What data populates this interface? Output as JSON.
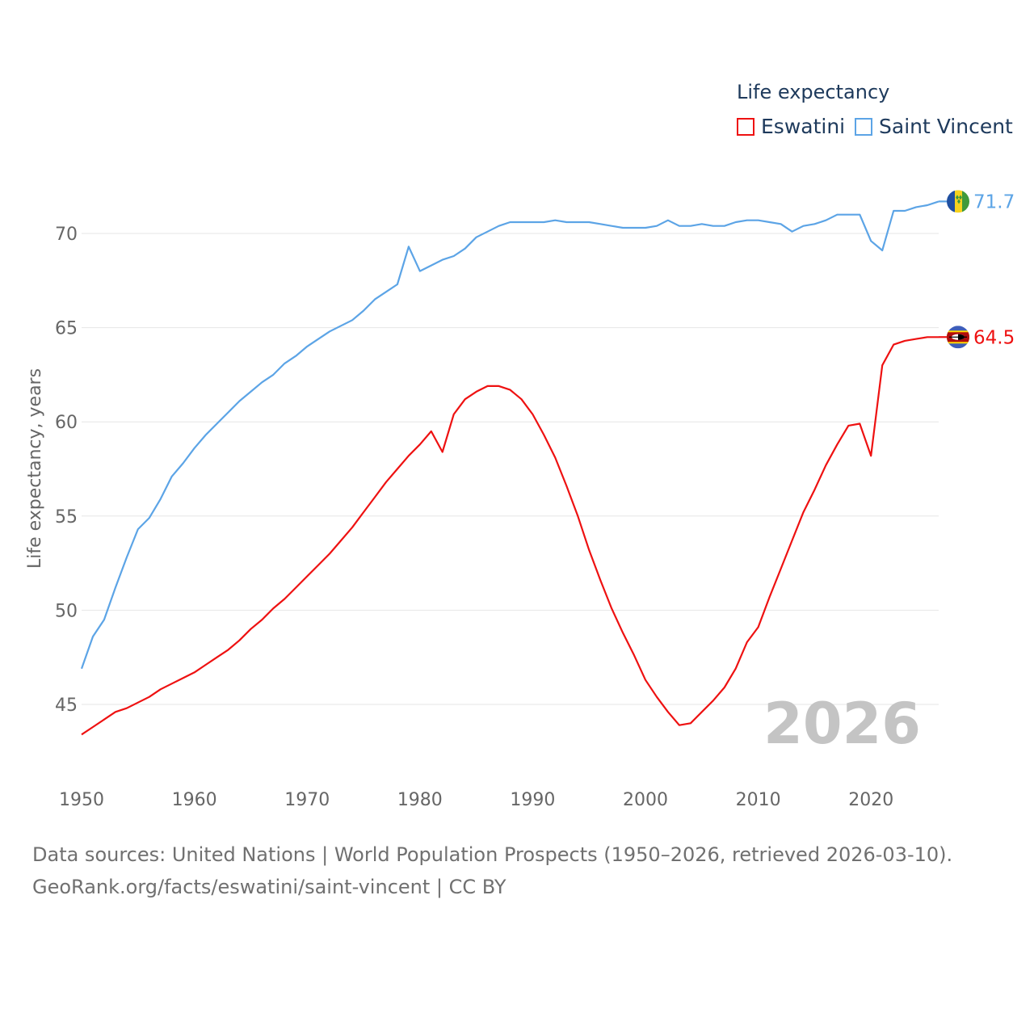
{
  "legend": {
    "title": "Life expectancy",
    "items": [
      {
        "label": "Eswatini",
        "color": "#ee1111"
      },
      {
        "label": "Saint Vincent",
        "color": "#5ca4e6"
      }
    ]
  },
  "year_watermark": "2026",
  "footer": {
    "line1": "Data sources: United Nations | World Population Prospects (1950–2026, retrieved 2026-03-10).",
    "line2": "GeoRank.org/facts/eswatini/saint-vincent | CC BY"
  },
  "chart_data": {
    "type": "line",
    "title": "Life expectancy",
    "xlabel": "",
    "ylabel": "Life expectancy, years",
    "xlim": [
      1950,
      2026
    ],
    "ylim": [
      43,
      72.5
    ],
    "xticks": [
      1950,
      1960,
      1970,
      1980,
      1990,
      2000,
      2010,
      2020
    ],
    "yticks": [
      45,
      50,
      55,
      60,
      65,
      70
    ],
    "grid": true,
    "legend_position": "top-right",
    "x": [
      1950,
      1951,
      1952,
      1953,
      1954,
      1955,
      1956,
      1957,
      1958,
      1959,
      1960,
      1961,
      1962,
      1963,
      1964,
      1965,
      1966,
      1967,
      1968,
      1969,
      1970,
      1971,
      1972,
      1973,
      1974,
      1975,
      1976,
      1977,
      1978,
      1979,
      1980,
      1981,
      1982,
      1983,
      1984,
      1985,
      1986,
      1987,
      1988,
      1989,
      1990,
      1991,
      1992,
      1993,
      1994,
      1995,
      1996,
      1997,
      1998,
      1999,
      2000,
      2001,
      2002,
      2003,
      2004,
      2005,
      2006,
      2007,
      2008,
      2009,
      2010,
      2011,
      2012,
      2013,
      2014,
      2015,
      2016,
      2017,
      2018,
      2019,
      2020,
      2021,
      2022,
      2023,
      2024,
      2025,
      2026
    ],
    "series": [
      {
        "name": "Eswatini",
        "color": "#ee1111",
        "end_label": "64.5",
        "values": [
          43.4,
          43.8,
          44.2,
          44.6,
          44.8,
          45.1,
          45.4,
          45.8,
          46.1,
          46.4,
          46.7,
          47.1,
          47.5,
          47.9,
          48.4,
          49.0,
          49.5,
          50.1,
          50.6,
          51.2,
          51.8,
          52.4,
          53.0,
          53.7,
          54.4,
          55.2,
          56.0,
          56.8,
          57.5,
          58.2,
          58.8,
          59.5,
          58.4,
          60.4,
          61.2,
          61.6,
          61.9,
          61.9,
          61.7,
          61.2,
          60.4,
          59.3,
          58.1,
          56.6,
          55.0,
          53.2,
          51.6,
          50.1,
          48.8,
          47.6,
          46.3,
          45.4,
          44.6,
          43.9,
          44.0,
          44.6,
          45.2,
          45.9,
          46.9,
          48.3,
          49.1,
          50.7,
          52.2,
          53.7,
          55.2,
          56.4,
          57.7,
          58.8,
          59.8,
          59.9,
          58.2,
          63.0,
          64.1,
          64.3,
          64.4,
          64.5,
          64.5
        ]
      },
      {
        "name": "Saint Vincent",
        "color": "#5ca4e6",
        "end_label": "71.7",
        "values": [
          46.9,
          48.6,
          49.5,
          51.2,
          52.8,
          54.3,
          54.9,
          55.9,
          57.1,
          57.8,
          58.6,
          59.3,
          59.9,
          60.5,
          61.1,
          61.6,
          62.1,
          62.5,
          63.1,
          63.5,
          64.0,
          64.4,
          64.8,
          65.1,
          65.4,
          65.9,
          66.5,
          66.9,
          67.3,
          69.3,
          68.0,
          68.3,
          68.6,
          68.8,
          69.2,
          69.8,
          70.1,
          70.4,
          70.6,
          70.6,
          70.6,
          70.6,
          70.7,
          70.6,
          70.6,
          70.6,
          70.5,
          70.4,
          70.3,
          70.3,
          70.3,
          70.4,
          70.7,
          70.4,
          70.4,
          70.5,
          70.4,
          70.4,
          70.6,
          70.7,
          70.7,
          70.6,
          70.5,
          70.1,
          70.4,
          70.5,
          70.7,
          71.0,
          71.0,
          71.0,
          69.6,
          69.1,
          71.2,
          71.2,
          71.4,
          71.5,
          71.7
        ]
      }
    ]
  }
}
